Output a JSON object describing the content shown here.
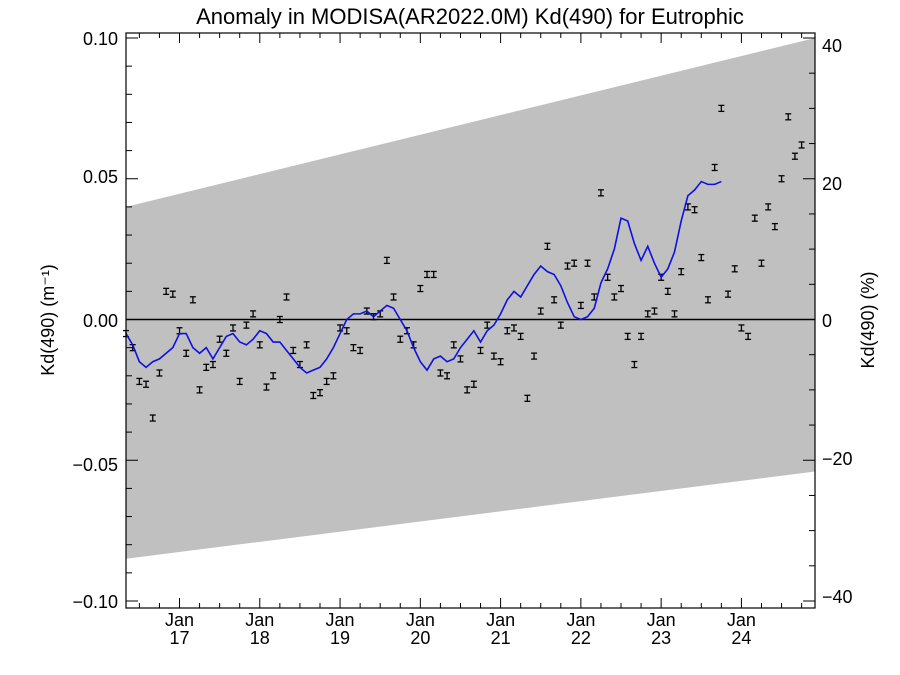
{
  "chart_data": {
    "type": "scatter",
    "title": "Anomaly in MODISA(AR2022.0M) Kd(490) for Eutrophic",
    "ylabel_left": "Kd(490) (m⁻¹)",
    "ylabel_right": "Kd(490) (%)",
    "xlabel": "",
    "x_start": "2016-05",
    "x_end": "2024-12",
    "ylim_left": [
      -0.1,
      0.1
    ],
    "ylim_right": [
      -40,
      40
    ],
    "yticks_left": [
      "0.10",
      "0.05",
      "0.00",
      "−0.05",
      "−0.10"
    ],
    "yticks_right": [
      "40",
      "20",
      "0",
      "−20",
      "−40"
    ],
    "xticks": [
      {
        "month": "Jan",
        "year": "17"
      },
      {
        "month": "Jan",
        "year": "18"
      },
      {
        "month": "Jan",
        "year": "19"
      },
      {
        "month": "Jan",
        "year": "20"
      },
      {
        "month": "Jan",
        "year": "21"
      },
      {
        "month": "Jan",
        "year": "22"
      },
      {
        "month": "Jan",
        "year": "23"
      },
      {
        "month": "Jan",
        "year": "24"
      }
    ],
    "uncertainty_band": {
      "upper": [
        [
          "2016-05",
          0.04
        ],
        [
          "2024-12",
          0.1
        ]
      ],
      "lower": [
        [
          "2016-05",
          -0.085
        ],
        [
          "2024-12",
          -0.054
        ]
      ]
    },
    "zero_line": 0,
    "monthly_anomaly": [
      [
        "2016-05",
        -0.005
      ],
      [
        "2016-06",
        -0.01
      ],
      [
        "2016-07",
        -0.022
      ],
      [
        "2016-08",
        -0.023
      ],
      [
        "2016-09",
        -0.035
      ],
      [
        "2016-10",
        -0.019
      ],
      [
        "2016-11",
        0.01
      ],
      [
        "2016-12",
        0.009
      ],
      [
        "2017-01",
        -0.004
      ],
      [
        "2017-02",
        -0.012
      ],
      [
        "2017-03",
        0.007
      ],
      [
        "2017-04",
        -0.025
      ],
      [
        "2017-05",
        -0.017
      ],
      [
        "2017-06",
        -0.016
      ],
      [
        "2017-07",
        -0.007
      ],
      [
        "2017-08",
        -0.012
      ],
      [
        "2017-09",
        -0.003
      ],
      [
        "2017-10",
        -0.022
      ],
      [
        "2017-11",
        -0.002
      ],
      [
        "2017-12",
        0.002
      ],
      [
        "2018-01",
        -0.009
      ],
      [
        "2018-02",
        -0.024
      ],
      [
        "2018-03",
        -0.02
      ],
      [
        "2018-04",
        0.0
      ],
      [
        "2018-05",
        0.008
      ],
      [
        "2018-06",
        -0.011
      ],
      [
        "2018-07",
        -0.016
      ],
      [
        "2018-08",
        -0.009
      ],
      [
        "2018-09",
        -0.027
      ],
      [
        "2018-10",
        -0.026
      ],
      [
        "2018-11",
        -0.022
      ],
      [
        "2018-12",
        -0.02
      ],
      [
        "2019-01",
        -0.003
      ],
      [
        "2019-02",
        -0.004
      ],
      [
        "2019-03",
        -0.01
      ],
      [
        "2019-04",
        -0.011
      ],
      [
        "2019-05",
        0.003
      ],
      [
        "2019-06",
        0.001
      ],
      [
        "2019-07",
        0.002
      ],
      [
        "2019-08",
        0.021
      ],
      [
        "2019-09",
        0.008
      ],
      [
        "2019-10",
        -0.007
      ],
      [
        "2019-11",
        -0.004
      ],
      [
        "2019-12",
        -0.009
      ],
      [
        "2020-01",
        0.011
      ],
      [
        "2020-02",
        0.016
      ],
      [
        "2020-03",
        0.016
      ],
      [
        "2020-04",
        -0.019
      ],
      [
        "2020-05",
        -0.02
      ],
      [
        "2020-06",
        -0.009
      ],
      [
        "2020-07",
        -0.014
      ],
      [
        "2020-08",
        -0.025
      ],
      [
        "2020-09",
        -0.023
      ],
      [
        "2020-10",
        -0.011
      ],
      [
        "2020-11",
        -0.002
      ],
      [
        "2020-12",
        -0.013
      ],
      [
        "2021-01",
        -0.015
      ],
      [
        "2021-02",
        -0.004
      ],
      [
        "2021-03",
        -0.003
      ],
      [
        "2021-04",
        -0.006
      ],
      [
        "2021-05",
        -0.028
      ],
      [
        "2021-06",
        -0.013
      ],
      [
        "2021-07",
        0.003
      ],
      [
        "2021-08",
        0.026
      ],
      [
        "2021-09",
        0.007
      ],
      [
        "2021-10",
        -0.002
      ],
      [
        "2021-11",
        0.019
      ],
      [
        "2021-12",
        0.02
      ],
      [
        "2022-01",
        0.005
      ],
      [
        "2022-02",
        0.02
      ],
      [
        "2022-03",
        0.008
      ],
      [
        "2022-04",
        0.045
      ],
      [
        "2022-05",
        0.015
      ],
      [
        "2022-06",
        0.008
      ],
      [
        "2022-07",
        0.011
      ],
      [
        "2022-08",
        -0.006
      ],
      [
        "2022-09",
        -0.016
      ],
      [
        "2022-10",
        -0.006
      ],
      [
        "2022-11",
        0.002
      ],
      [
        "2022-12",
        0.003
      ],
      [
        "2023-01",
        0.015
      ],
      [
        "2023-02",
        0.01
      ],
      [
        "2023-03",
        0.002
      ],
      [
        "2023-04",
        0.017
      ],
      [
        "2023-05",
        0.04
      ],
      [
        "2023-06",
        0.039
      ],
      [
        "2023-07",
        0.022
      ],
      [
        "2023-08",
        0.007
      ],
      [
        "2023-09",
        0.054
      ],
      [
        "2023-10",
        0.075
      ],
      [
        "2023-11",
        0.009
      ],
      [
        "2023-12",
        0.018
      ],
      [
        "2024-01",
        -0.003
      ],
      [
        "2024-02",
        -0.006
      ],
      [
        "2024-03",
        0.036
      ],
      [
        "2024-04",
        0.02
      ],
      [
        "2024-05",
        0.04
      ],
      [
        "2024-06",
        0.033
      ],
      [
        "2024-07",
        0.05
      ],
      [
        "2024-08",
        0.072
      ],
      [
        "2024-09",
        0.058
      ],
      [
        "2024-10",
        0.062
      ]
    ],
    "running_mean": [
      [
        "2016-05",
        -0.005
      ],
      [
        "2016-06",
        -0.009
      ],
      [
        "2016-07",
        -0.015
      ],
      [
        "2016-08",
        -0.017
      ],
      [
        "2016-09",
        -0.015
      ],
      [
        "2016-10",
        -0.014
      ],
      [
        "2016-11",
        -0.012
      ],
      [
        "2016-12",
        -0.01
      ],
      [
        "2017-01",
        -0.005
      ],
      [
        "2017-02",
        -0.005
      ],
      [
        "2017-03",
        -0.01
      ],
      [
        "2017-04",
        -0.012
      ],
      [
        "2017-05",
        -0.01
      ],
      [
        "2017-06",
        -0.014
      ],
      [
        "2017-07",
        -0.01
      ],
      [
        "2017-08",
        -0.006
      ],
      [
        "2017-09",
        -0.005
      ],
      [
        "2017-10",
        -0.008
      ],
      [
        "2017-11",
        -0.009
      ],
      [
        "2017-12",
        -0.007
      ],
      [
        "2018-01",
        -0.004
      ],
      [
        "2018-02",
        -0.005
      ],
      [
        "2018-03",
        -0.008
      ],
      [
        "2018-04",
        -0.008
      ],
      [
        "2018-05",
        -0.011
      ],
      [
        "2018-06",
        -0.014
      ],
      [
        "2018-07",
        -0.017
      ],
      [
        "2018-08",
        -0.019
      ],
      [
        "2018-09",
        -0.018
      ],
      [
        "2018-10",
        -0.017
      ],
      [
        "2018-11",
        -0.014
      ],
      [
        "2018-12",
        -0.01
      ],
      [
        "2019-01",
        -0.005
      ],
      [
        "2019-02",
        0.0
      ],
      [
        "2019-03",
        0.002
      ],
      [
        "2019-04",
        0.002
      ],
      [
        "2019-05",
        0.003
      ],
      [
        "2019-06",
        0.001
      ],
      [
        "2019-07",
        0.003
      ],
      [
        "2019-08",
        0.005
      ],
      [
        "2019-09",
        0.004
      ],
      [
        "2019-10",
        0.0
      ],
      [
        "2019-11",
        -0.004
      ],
      [
        "2019-12",
        -0.01
      ],
      [
        "2020-01",
        -0.015
      ],
      [
        "2020-02",
        -0.018
      ],
      [
        "2020-03",
        -0.014
      ],
      [
        "2020-04",
        -0.013
      ],
      [
        "2020-05",
        -0.015
      ],
      [
        "2020-06",
        -0.014
      ],
      [
        "2020-07",
        -0.01
      ],
      [
        "2020-08",
        -0.007
      ],
      [
        "2020-09",
        -0.004
      ],
      [
        "2020-10",
        -0.008
      ],
      [
        "2020-11",
        -0.004
      ],
      [
        "2020-12",
        -0.002
      ],
      [
        "2021-01",
        0.002
      ],
      [
        "2021-02",
        0.007
      ],
      [
        "2021-03",
        0.01
      ],
      [
        "2021-04",
        0.008
      ],
      [
        "2021-05",
        0.012
      ],
      [
        "2021-06",
        0.016
      ],
      [
        "2021-07",
        0.019
      ],
      [
        "2021-08",
        0.017
      ],
      [
        "2021-09",
        0.016
      ],
      [
        "2021-10",
        0.012
      ],
      [
        "2021-11",
        0.006
      ],
      [
        "2021-12",
        0.001
      ],
      [
        "2022-01",
        0.0
      ],
      [
        "2022-02",
        0.001
      ],
      [
        "2022-03",
        0.004
      ],
      [
        "2022-04",
        0.013
      ],
      [
        "2022-05",
        0.018
      ],
      [
        "2022-06",
        0.025
      ],
      [
        "2022-07",
        0.036
      ],
      [
        "2022-08",
        0.035
      ],
      [
        "2022-09",
        0.027
      ],
      [
        "2022-10",
        0.021
      ],
      [
        "2022-11",
        0.026
      ],
      [
        "2022-12",
        0.02
      ],
      [
        "2023-01",
        0.015
      ],
      [
        "2023-02",
        0.018
      ],
      [
        "2023-03",
        0.024
      ],
      [
        "2023-04",
        0.035
      ],
      [
        "2023-05",
        0.044
      ],
      [
        "2023-06",
        0.046
      ],
      [
        "2023-07",
        0.049
      ],
      [
        "2023-08",
        0.048
      ],
      [
        "2023-09",
        0.048
      ],
      [
        "2023-10",
        0.049
      ]
    ]
  }
}
